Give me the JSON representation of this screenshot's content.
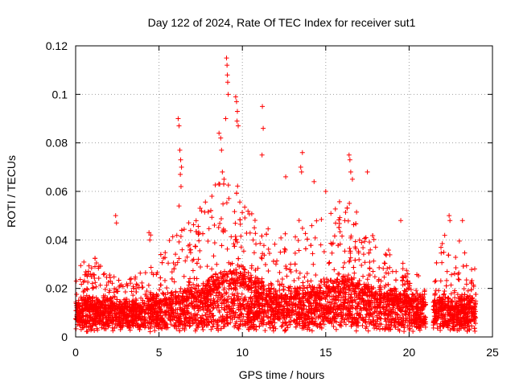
{
  "chart_data": {
    "type": "scatter",
    "title": "Day 122 of 2024, Rate Of TEC Index for receiver sut1",
    "xlabel": "GPS time / hours",
    "ylabel": "ROTI / TECUs",
    "xlim": [
      0,
      25
    ],
    "ylim": [
      0,
      0.12
    ],
    "xticks": [
      0,
      5,
      10,
      15,
      20,
      25
    ],
    "xtick_labels": [
      "0",
      "5",
      "10",
      "15",
      "20",
      "25"
    ],
    "yticks": [
      0,
      0.02,
      0.04,
      0.06,
      0.08,
      0.1,
      0.12
    ],
    "ytick_labels": [
      "0",
      "0.02",
      "0.04",
      "0.06",
      "0.08",
      "0.1",
      "0.12"
    ],
    "grid": true,
    "marker": "plus",
    "color": "#ff0000",
    "series": [
      {
        "name": "ROTI",
        "envelope_hours": [
          0,
          1,
          2,
          3,
          4,
          5,
          6,
          7,
          8,
          9,
          10,
          11,
          12,
          13,
          14,
          15,
          16,
          17,
          18,
          19,
          20,
          21,
          21.5,
          22,
          23,
          24
        ],
        "envelope_base": [
          0.012,
          0.012,
          0.012,
          0.011,
          0.012,
          0.013,
          0.014,
          0.016,
          0.018,
          0.022,
          0.022,
          0.018,
          0.016,
          0.015,
          0.016,
          0.018,
          0.02,
          0.018,
          0.016,
          0.015,
          0.014,
          0.013,
          0.013,
          0.012,
          0.012,
          0.012
        ],
        "envelope_top": [
          0.028,
          0.034,
          0.026,
          0.022,
          0.03,
          0.035,
          0.045,
          0.048,
          0.06,
          0.068,
          0.06,
          0.05,
          0.044,
          0.05,
          0.052,
          0.05,
          0.06,
          0.05,
          0.04,
          0.035,
          0.03,
          0.022,
          0.026,
          0.045,
          0.04,
          0.03
        ],
        "gap_hours": [
          21.0,
          21.45
        ],
        "outliers": [
          [
            9.05,
            0.115
          ],
          [
            9.08,
            0.112
          ],
          [
            9.1,
            0.108
          ],
          [
            9.12,
            0.105
          ],
          [
            9.15,
            0.1
          ],
          [
            9.0,
            0.09
          ],
          [
            9.6,
            0.099
          ],
          [
            9.65,
            0.097
          ],
          [
            9.7,
            0.093
          ],
          [
            9.68,
            0.089
          ],
          [
            9.75,
            0.087
          ],
          [
            11.2,
            0.095
          ],
          [
            11.25,
            0.086
          ],
          [
            11.18,
            0.075
          ],
          [
            6.15,
            0.09
          ],
          [
            6.2,
            0.087
          ],
          [
            6.25,
            0.077
          ],
          [
            6.3,
            0.073
          ],
          [
            6.35,
            0.07
          ],
          [
            6.28,
            0.067
          ],
          [
            6.32,
            0.062
          ],
          [
            6.2,
            0.054
          ],
          [
            8.6,
            0.084
          ],
          [
            8.7,
            0.082
          ],
          [
            8.75,
            0.077
          ],
          [
            8.8,
            0.068
          ],
          [
            8.9,
            0.065
          ],
          [
            13.6,
            0.076
          ],
          [
            13.5,
            0.07
          ],
          [
            13.55,
            0.068
          ],
          [
            12.6,
            0.066
          ],
          [
            16.4,
            0.075
          ],
          [
            16.45,
            0.073
          ],
          [
            16.5,
            0.068
          ],
          [
            16.6,
            0.065
          ],
          [
            17.5,
            0.068
          ],
          [
            2.4,
            0.05
          ],
          [
            2.45,
            0.047
          ],
          [
            4.4,
            0.043
          ],
          [
            4.5,
            0.042
          ],
          [
            4.45,
            0.04
          ],
          [
            22.4,
            0.05
          ],
          [
            22.45,
            0.048
          ],
          [
            14.3,
            0.064
          ],
          [
            15.0,
            0.06
          ],
          [
            19.5,
            0.048
          ],
          [
            23.2,
            0.048
          ]
        ]
      }
    ]
  }
}
